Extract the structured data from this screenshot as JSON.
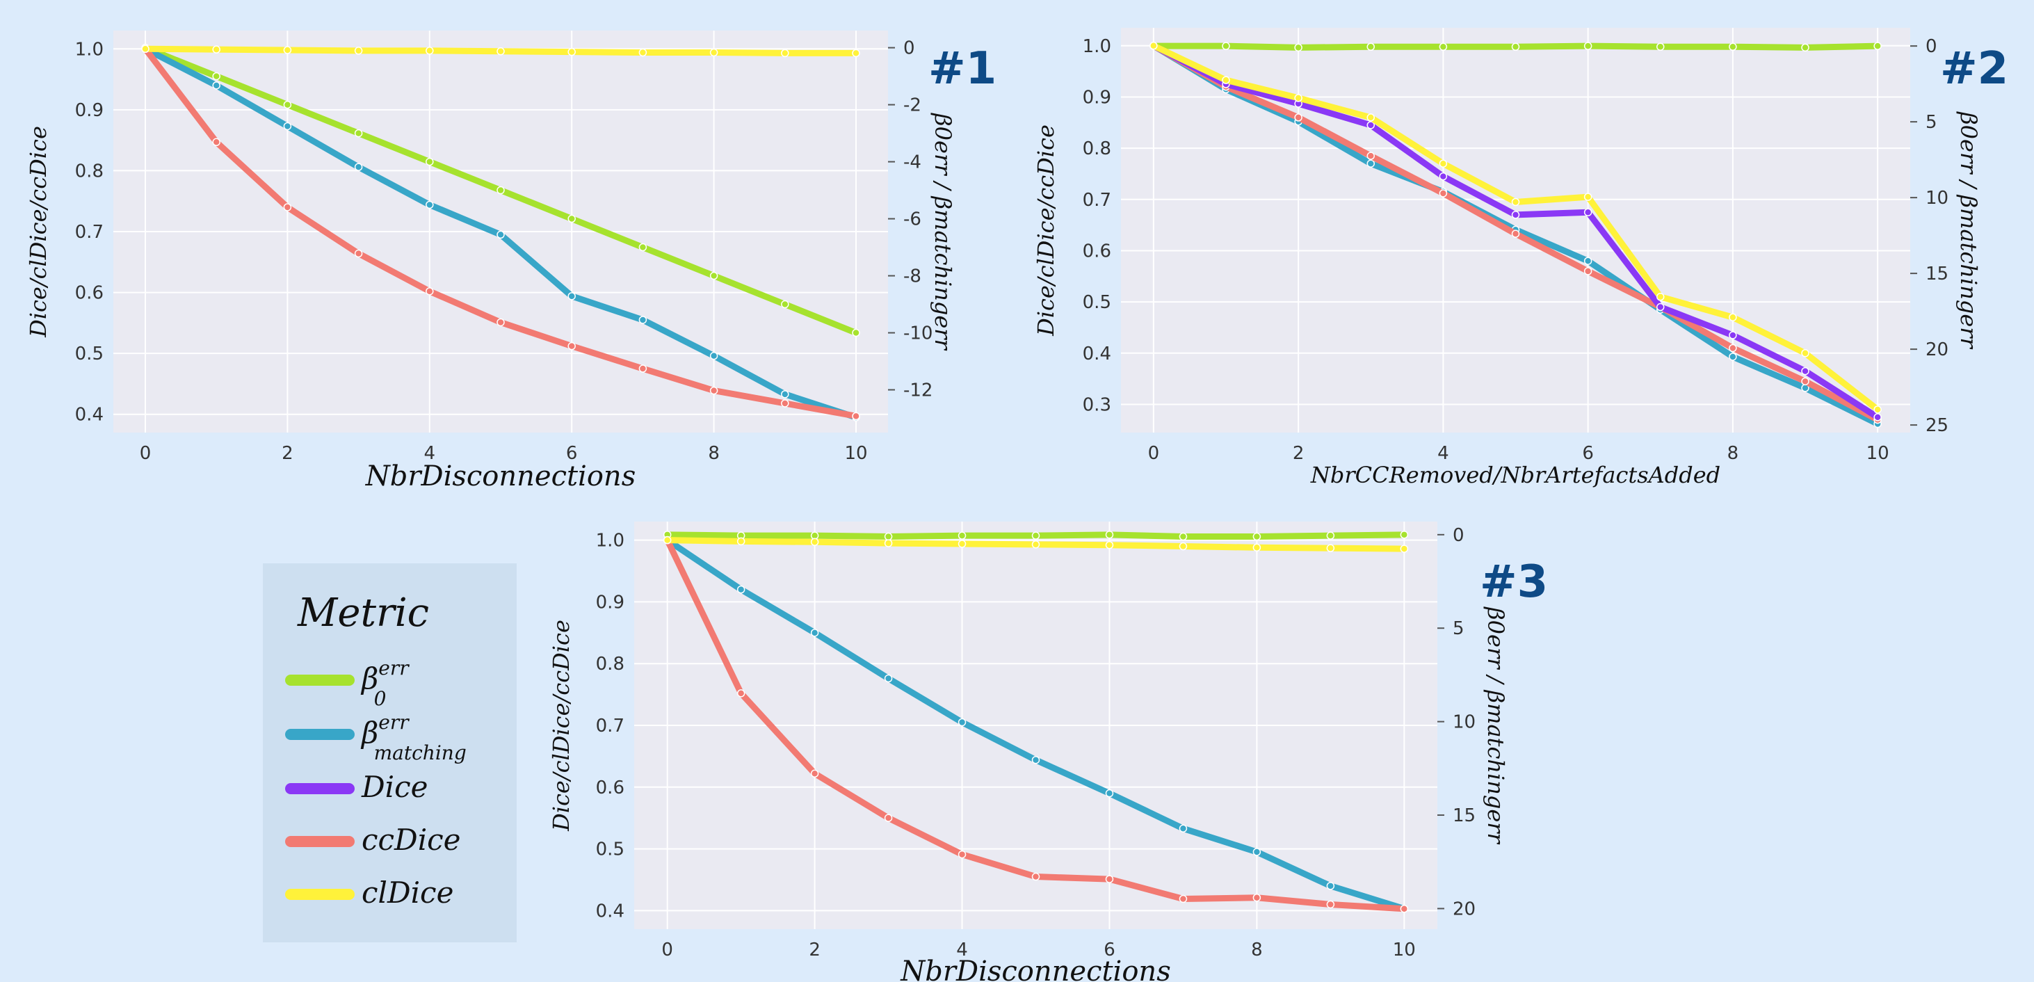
{
  "colors": {
    "beta0": "#a6e22e",
    "beta_matching": "#38a6c8",
    "dice": "#8a38f5",
    "ccdice": "#f27a72",
    "cldice": "#fff23a",
    "plot_bg": "#eaeaf2",
    "page_bg": "#dcebfb",
    "legend_bg": "#cddff0",
    "badge": "#0e4a86"
  },
  "legend": {
    "title": "Metric",
    "items": [
      {
        "key": "beta0",
        "label": "β",
        "sup": "err",
        "sub": "0"
      },
      {
        "key": "beta_matching",
        "label": "β",
        "sup": "err",
        "sub": "matching"
      },
      {
        "key": "dice",
        "label": "Dice"
      },
      {
        "key": "ccdice",
        "label": "ccDice"
      },
      {
        "key": "cldice",
        "label": "clDice"
      }
    ]
  },
  "chart_data": [
    {
      "type": "line",
      "badge": "#1",
      "xlabel": "NbrDisconnections",
      "ylabel_left": "Dice/clDice/ccDice",
      "ylabel_right": "β0err / βmatchingerr",
      "x": [
        0,
        1,
        2,
        3,
        4,
        5,
        6,
        7,
        8,
        9,
        10
      ],
      "xticks": [
        0,
        2,
        4,
        6,
        8,
        10
      ],
      "ylim": [
        0.37,
        1.03
      ],
      "yticks": [
        0.4,
        0.5,
        0.6,
        0.7,
        0.8,
        0.9,
        1.0
      ],
      "y2lim": [
        -13.5,
        0.6
      ],
      "y2ticks": [
        0,
        -2,
        -4,
        -6,
        -8,
        -10,
        -12
      ],
      "y2ticklabels": [
        "0",
        "-2",
        "-4",
        "-6",
        "-8",
        "-10",
        "-12"
      ],
      "series": [
        {
          "key": "beta0",
          "axis": "right",
          "values": [
            0,
            -1,
            -2,
            -3,
            -4,
            -5,
            -6,
            -7,
            -8,
            -9,
            -10
          ]
        },
        {
          "key": "beta_matching",
          "axis": "left",
          "values": [
            1.0,
            0.94,
            0.873,
            0.806,
            0.744,
            0.695,
            0.594,
            0.555,
            0.496,
            0.433,
            0.395
          ]
        },
        {
          "key": "ccdice",
          "axis": "left",
          "values": [
            1.0,
            0.847,
            0.74,
            0.664,
            0.602,
            0.551,
            0.512,
            0.475,
            0.439,
            0.418,
            0.397
          ]
        },
        {
          "key": "cldice",
          "axis": "left",
          "values": [
            1.0,
            0.999,
            0.998,
            0.997,
            0.997,
            0.996,
            0.995,
            0.994,
            0.994,
            0.993,
            0.993
          ]
        }
      ]
    },
    {
      "type": "line",
      "badge": "#2",
      "xlabel": "NbrCCRemoved/NbrArtefactsAdded",
      "ylabel_left": "Dice/clDice/ccDice",
      "ylabel_right": "β0err / βmatchingerr",
      "x": [
        0,
        1,
        2,
        3,
        4,
        5,
        6,
        7,
        8,
        9,
        10
      ],
      "xticks": [
        0,
        2,
        4,
        6,
        8,
        10
      ],
      "ylim": [
        0.245,
        1.035
      ],
      "yticks": [
        0.3,
        0.4,
        0.5,
        0.6,
        0.7,
        0.8,
        0.9,
        1.0
      ],
      "y2lim": [
        25.5,
        -1.2
      ],
      "y2ticks": [
        0,
        5,
        10,
        15,
        20,
        25
      ],
      "y2ticklabels": [
        "0",
        "5",
        "10",
        "15",
        "20",
        "25"
      ],
      "series": [
        {
          "key": "beta0",
          "axis": "right",
          "values": [
            0,
            0,
            0.1,
            0.05,
            0.05,
            0.05,
            0,
            0.05,
            0.05,
            0.1,
            0
          ]
        },
        {
          "key": "beta_matching",
          "axis": "left",
          "values": [
            1.0,
            0.915,
            0.852,
            0.77,
            0.715,
            0.641,
            0.58,
            0.485,
            0.393,
            0.332,
            0.262
          ]
        },
        {
          "key": "ccdice",
          "axis": "left",
          "values": [
            1.0,
            0.92,
            0.86,
            0.785,
            0.712,
            0.633,
            0.56,
            0.49,
            0.41,
            0.345,
            0.27
          ]
        },
        {
          "key": "dice",
          "axis": "left",
          "values": [
            1.0,
            0.925,
            0.887,
            0.845,
            0.745,
            0.67,
            0.675,
            0.49,
            0.435,
            0.365,
            0.275
          ]
        },
        {
          "key": "cldice",
          "axis": "left",
          "values": [
            1.0,
            0.933,
            0.898,
            0.86,
            0.77,
            0.695,
            0.705,
            0.51,
            0.47,
            0.4,
            0.29
          ]
        }
      ]
    },
    {
      "type": "line",
      "badge": "#3",
      "xlabel": "NbrDisconnections",
      "ylabel_left": "Dice/clDice/ccDice",
      "ylabel_right": "β0err / βmatchingerr",
      "x": [
        0,
        1,
        2,
        3,
        4,
        5,
        6,
        7,
        8,
        9,
        10
      ],
      "xticks": [
        0,
        2,
        4,
        6,
        8,
        10
      ],
      "ylim": [
        0.37,
        1.03
      ],
      "yticks": [
        0.4,
        0.5,
        0.6,
        0.7,
        0.8,
        0.9,
        1.0
      ],
      "y2lim": [
        21.1,
        -0.7
      ],
      "y2ticks": [
        0,
        5,
        10,
        15,
        20
      ],
      "y2ticklabels": [
        "0",
        "5",
        "10",
        "15",
        "20"
      ],
      "series": [
        {
          "key": "beta0",
          "axis": "right",
          "values": [
            0,
            0.05,
            0.05,
            0.1,
            0.05,
            0.05,
            0,
            0.1,
            0.1,
            0.05,
            0
          ]
        },
        {
          "key": "beta_matching",
          "axis": "left",
          "values": [
            1.0,
            0.92,
            0.85,
            0.776,
            0.705,
            0.644,
            0.59,
            0.533,
            0.495,
            0.44,
            0.403
          ]
        },
        {
          "key": "ccdice",
          "axis": "left",
          "values": [
            1.0,
            0.752,
            0.622,
            0.55,
            0.491,
            0.455,
            0.451,
            0.419,
            0.421,
            0.41,
            0.403
          ]
        },
        {
          "key": "cldice",
          "axis": "left",
          "values": [
            1.0,
            0.998,
            0.997,
            0.995,
            0.994,
            0.993,
            0.992,
            0.99,
            0.988,
            0.987,
            0.986
          ]
        }
      ]
    }
  ]
}
